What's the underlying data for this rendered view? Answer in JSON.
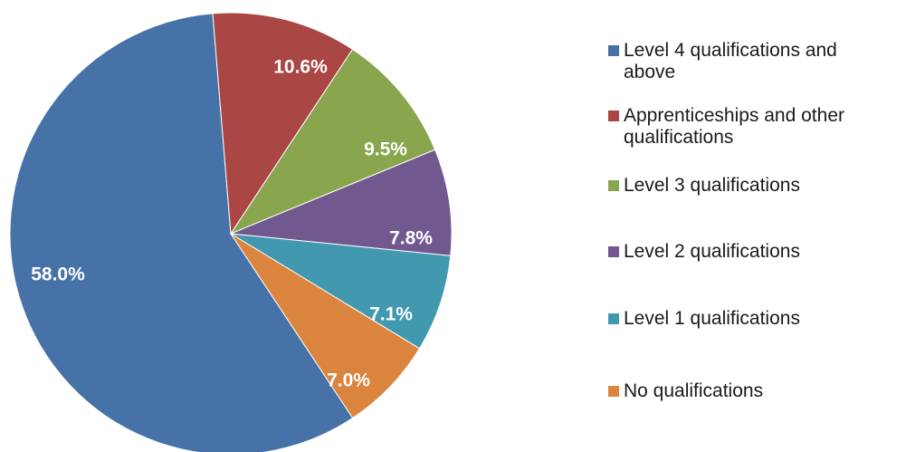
{
  "chart_data": {
    "type": "pie",
    "categories": [
      "Level 4 qualifications and above",
      "Apprenticeships and other qualifications",
      "Level 3 qualifications",
      "Level 2 qualifications",
      "Level 1 qualifications",
      "No qualifications"
    ],
    "values": [
      58.0,
      10.6,
      9.5,
      7.8,
      7.1,
      7.0
    ],
    "labels": [
      "58.0%",
      "10.6%",
      "9.5%",
      "7.8%",
      "7.1%",
      "7.0%"
    ],
    "colors": [
      "#4672A7",
      "#AA4643",
      "#89A54E",
      "#71588F",
      "#4198AF",
      "#DB843D"
    ],
    "legend": {
      "placement": "right",
      "entries": [
        {
          "line1": "Level 4 qualifications and",
          "line2": "above"
        },
        {
          "line1": "Apprenticeships and other",
          "line2": "qualifications"
        },
        {
          "line1": "Level 3 qualifications",
          "line2": ""
        },
        {
          "line1": "Level 2 qualifications",
          "line2": ""
        },
        {
          "line1": "Level 1 qualifications",
          "line2": ""
        },
        {
          "line1": "No qualifications",
          "line2": ""
        }
      ]
    }
  }
}
